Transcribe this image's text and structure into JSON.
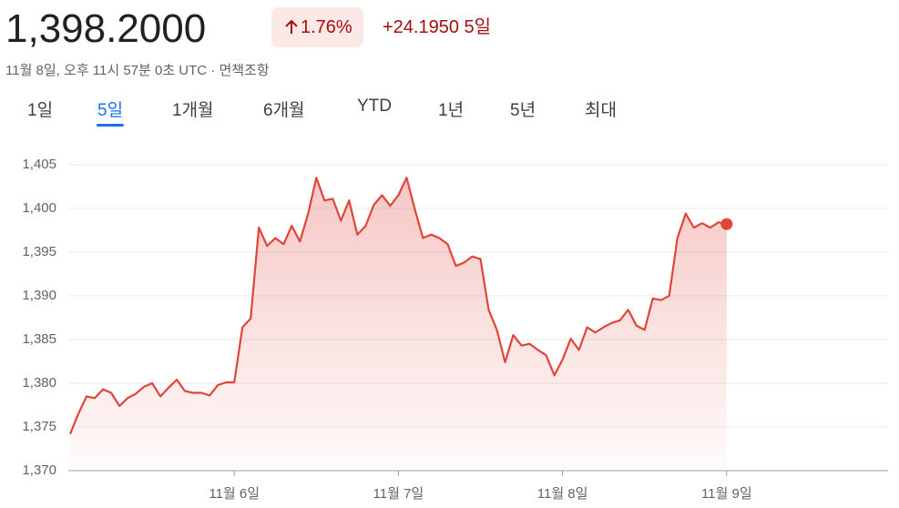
{
  "header": {
    "price": "1,398.2000",
    "change_percent": "1.76%",
    "change": "+24.1950",
    "period": "5일",
    "timestamp": "11월 8일, 오후 11시 57분 0초 UTC · ",
    "disclaimer": "면책조항"
  },
  "tabs": {
    "items": [
      "1일",
      "5일",
      "1개월",
      "6개월",
      "YTD",
      "1년",
      "5년",
      "최대"
    ],
    "selected": 1
  },
  "chart_data": {
    "type": "line",
    "color": "#e0453a",
    "grid": true,
    "x": [
      0,
      0.05,
      0.1,
      0.15,
      0.2,
      0.25,
      0.3,
      0.35,
      0.4,
      0.45,
      0.5,
      0.55,
      0.6,
      0.65,
      0.7,
      0.75,
      0.8,
      0.85,
      0.9,
      0.95,
      1,
      1.05,
      1.1,
      1.15,
      1.2,
      1.25,
      1.3,
      1.35,
      1.4,
      1.45,
      1.5,
      1.55,
      1.6,
      1.65,
      1.7,
      1.75,
      1.8,
      1.85,
      1.9,
      1.95,
      2,
      2.05,
      2.1,
      2.15,
      2.2,
      2.25,
      2.3,
      2.35,
      2.4,
      2.45,
      2.5,
      2.55,
      2.6,
      2.65,
      2.7,
      2.75,
      2.8,
      2.85,
      2.9,
      2.95,
      3,
      3.05,
      3.1,
      3.15,
      3.2,
      3.25,
      3.3,
      3.35,
      3.4,
      3.45,
      3.5,
      3.55,
      3.6,
      3.65,
      3.7,
      3.75,
      3.8,
      3.85,
      3.9,
      3.95,
      4
    ],
    "values": [
      1374.2,
      1376.5,
      1378.5,
      1378.3,
      1379.3,
      1378.9,
      1377.4,
      1378.3,
      1378.8,
      1379.6,
      1380.0,
      1378.5,
      1379.5,
      1380.4,
      1379.1,
      1378.9,
      1378.9,
      1378.6,
      1379.8,
      1380.1,
      1380.1,
      1386.4,
      1387.4,
      1397.8,
      1395.7,
      1396.6,
      1395.9,
      1398.0,
      1396.2,
      1399.4,
      1403.5,
      1400.9,
      1401.1,
      1398.6,
      1400.9,
      1397.0,
      1398.0,
      1400.4,
      1401.5,
      1400.3,
      1401.5,
      1403.5,
      1399.9,
      1396.6,
      1397.0,
      1396.6,
      1395.9,
      1393.4,
      1393.8,
      1394.5,
      1394.2,
      1388.4,
      1386.1,
      1382.4,
      1385.5,
      1384.3,
      1384.5,
      1383.8,
      1383.2,
      1380.9,
      1382.7,
      1385.1,
      1383.8,
      1386.4,
      1385.8,
      1386.4,
      1386.9,
      1387.2,
      1388.4,
      1386.6,
      1386.1,
      1389.7,
      1389.5,
      1390.0,
      1396.6,
      1399.4,
      1397.8,
      1398.3,
      1397.8,
      1398.4,
      1398.2
    ],
    "xlim": [
      0,
      5
    ],
    "xticks": [
      {
        "value": 1,
        "label": "11월 6일"
      },
      {
        "value": 2,
        "label": "11월 7일"
      },
      {
        "value": 3,
        "label": "11월 8일"
      },
      {
        "value": 4,
        "label": "11월 9일"
      }
    ],
    "ylim": [
      1370,
      1408
    ],
    "yticks": [
      {
        "value": 1370,
        "label": "1,370"
      },
      {
        "value": 1375,
        "label": "1,375"
      },
      {
        "value": 1380,
        "label": "1,380"
      },
      {
        "value": 1385,
        "label": "1,385"
      },
      {
        "value": 1390,
        "label": "1,390"
      },
      {
        "value": 1395,
        "label": "1,395"
      },
      {
        "value": 1400,
        "label": "1,400"
      },
      {
        "value": 1405,
        "label": "1,405"
      }
    ]
  }
}
